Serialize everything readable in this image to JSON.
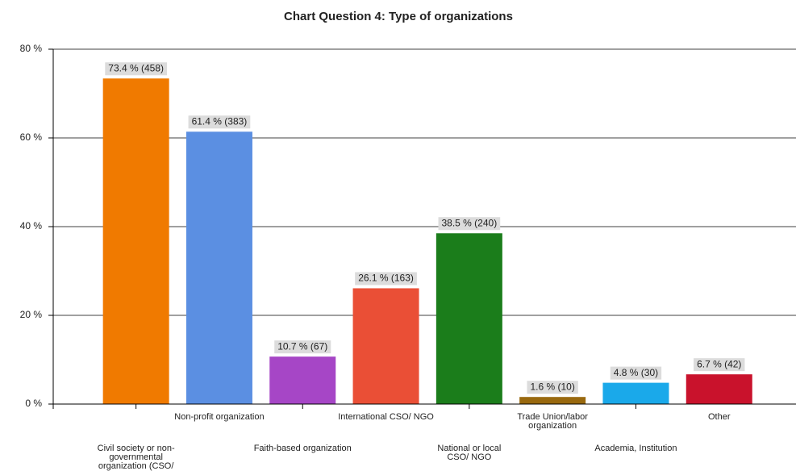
{
  "chart_data": {
    "type": "bar",
    "title": "Chart Question 4:   Type of organizations",
    "categories": [
      "Civil society or non-governmental organization (CSO/ NGO)",
      "Non-profit organization",
      "Faith-based organization",
      "International CSO/ NGO",
      "National or local CSO/ NGO",
      "Trade Union/labor organization",
      "Academia, Institution",
      "Other"
    ],
    "values": [
      73.4,
      61.4,
      10.7,
      26.1,
      38.5,
      1.6,
      4.8,
      6.7
    ],
    "value_labels": [
      "73.4 % (458)",
      "61.4 % (383)",
      "10.7 % (67)",
      "26.1 % (163)",
      "38.5 % (240)",
      "1.6 % (10)",
      "4.8 % (30)",
      "6.7 % (42)"
    ],
    "colors": [
      "#f07a00",
      "#5b8fe2",
      "#a646c6",
      "#ea4f36",
      "#1b7d1b",
      "#99690f",
      "#1aa9ea",
      "#c9122c"
    ],
    "ylim": [
      0,
      80
    ],
    "yticks": [
      {
        "value": 0,
        "label": "0 %"
      },
      {
        "value": 20,
        "label": "20 %"
      },
      {
        "value": 40,
        "label": "40 %"
      },
      {
        "value": 60,
        "label": "60 %"
      },
      {
        "value": 80,
        "label": "80 %"
      }
    ],
    "grid": true
  }
}
